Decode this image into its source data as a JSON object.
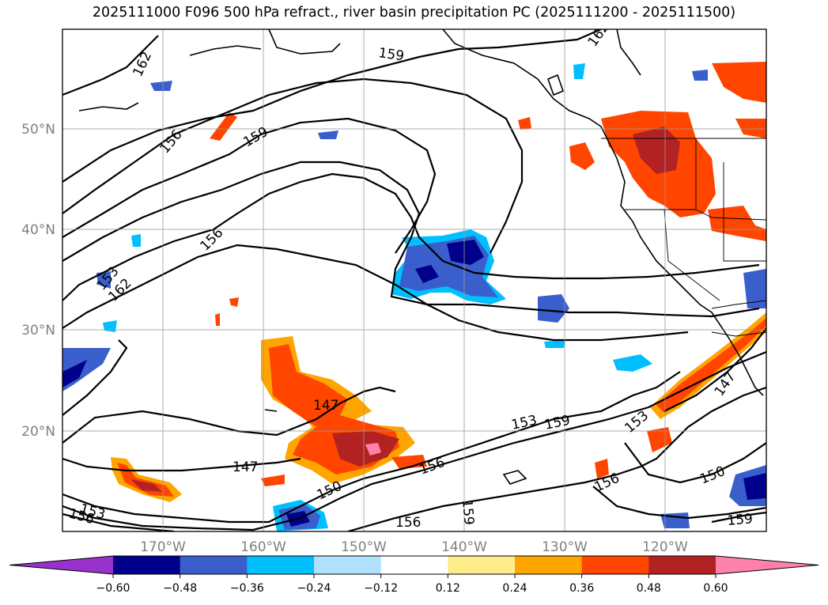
{
  "title": "2025111000 F096 500 hPa refract., river basin precipitation PC (2025111200 - 2025111500)",
  "map": {
    "lat_labels": [
      "50°N",
      "40°N",
      "30°N",
      "20°N"
    ],
    "lon_labels": [
      "170°W",
      "160°W",
      "150°W",
      "140°W",
      "130°W",
      "120°W"
    ],
    "contour_labels": [
      {
        "text": "162",
        "key": "c162_a"
      },
      {
        "text": "159",
        "key": "c159_top"
      },
      {
        "text": "162",
        "key": "c162_b"
      },
      {
        "text": "156",
        "key": "c156_a"
      },
      {
        "text": "159",
        "key": "c159_b"
      },
      {
        "text": "156",
        "key": "c156_b"
      },
      {
        "text": "153",
        "key": "c153_a"
      },
      {
        "text": "162",
        "key": "c162_c"
      },
      {
        "text": "147",
        "key": "c147_a"
      },
      {
        "text": "147",
        "key": "c147_b"
      },
      {
        "text": "150",
        "key": "c150_a"
      },
      {
        "text": "156",
        "key": "c156_c"
      },
      {
        "text": "153",
        "key": "c153_b"
      },
      {
        "text": "159",
        "key": "c159_c"
      },
      {
        "text": "153",
        "key": "c153_c"
      },
      {
        "text": "147",
        "key": "c147_c"
      },
      {
        "text": "156",
        "key": "c156_d"
      },
      {
        "text": "150",
        "key": "c150_b"
      },
      {
        "text": "159",
        "key": "c159_d"
      },
      {
        "text": "156",
        "key": "c156_e"
      },
      {
        "text": "159",
        "key": "c159_e"
      },
      {
        "text": "153",
        "key": "c153_d"
      },
      {
        "text": "156",
        "key": "c156_f"
      }
    ]
  },
  "colorbar": {
    "ticks": [
      "−0.60",
      "−0.48",
      "−0.36",
      "−0.24",
      "−0.12",
      "0.12",
      "0.24",
      "0.36",
      "0.48",
      "0.60"
    ],
    "colors": [
      "#9932cc",
      "#00008b",
      "#3a5fcd",
      "#00bfff",
      "#b0e2ff",
      "#ffffff",
      "#ffec8b",
      "#ffa500",
      "#ff4500",
      "#b22222",
      "#ff82ab"
    ]
  }
}
